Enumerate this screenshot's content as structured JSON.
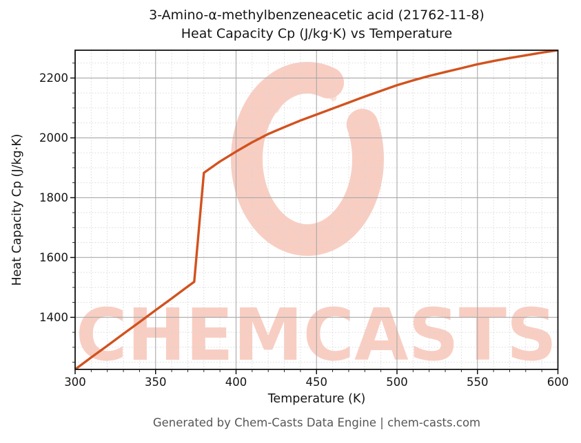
{
  "title": {
    "line1": "3-Amino-α-methylbenzeneacetic acid (21762-11-8)",
    "line2": "Heat Capacity Cp (J/kg·K) vs Temperature"
  },
  "footer": {
    "text": "Generated by Chem-Casts Data Engine | chem-casts.com"
  },
  "watermark": {
    "text": "CHEMCASTS",
    "logo": "c-swoosh-logo",
    "color": "#e65028",
    "opacity": 0.28
  },
  "chart_data": {
    "type": "line",
    "title": "3-Amino-α-methylbenzeneacetic acid (21762-11-8) — Heat Capacity Cp (J/kg·K) vs Temperature",
    "xlabel": "Temperature (K)",
    "ylabel": "Heat Capacity Cp (J/kg·K)",
    "xlim": [
      300,
      600
    ],
    "ylim": [
      1226,
      2293
    ],
    "xticks_major": [
      300,
      350,
      400,
      450,
      500,
      550,
      600
    ],
    "xtick_minor_step": 10,
    "yticks_major": [
      1400,
      1600,
      1800,
      2000,
      2200
    ],
    "ytick_minor_step": 50,
    "grid": true,
    "legend": false,
    "line_color": "#d2521e",
    "line_width": 3.4,
    "major_grid_color": "#a8a8a8",
    "minor_grid_color": "#d4d4d4",
    "spine_color": "#111111",
    "tick_label_color": "#151515",
    "series": [
      {
        "name": "Heat Capacity Cp",
        "points": [
          [
            300,
            1226
          ],
          [
            310,
            1266
          ],
          [
            320,
            1305
          ],
          [
            330,
            1345
          ],
          [
            340,
            1384
          ],
          [
            350,
            1424
          ],
          [
            360,
            1463
          ],
          [
            370,
            1503
          ],
          [
            374,
            1519
          ],
          [
            380,
            1883
          ],
          [
            390,
            1921
          ],
          [
            400,
            1954
          ],
          [
            410,
            1985
          ],
          [
            420,
            2013
          ],
          [
            430,
            2036
          ],
          [
            440,
            2058
          ],
          [
            450,
            2078
          ],
          [
            460,
            2098
          ],
          [
            470,
            2118
          ],
          [
            480,
            2138
          ],
          [
            490,
            2157
          ],
          [
            500,
            2176
          ],
          [
            510,
            2192
          ],
          [
            520,
            2207
          ],
          [
            530,
            2220
          ],
          [
            540,
            2233
          ],
          [
            550,
            2246
          ],
          [
            560,
            2257
          ],
          [
            570,
            2267
          ],
          [
            580,
            2276
          ],
          [
            590,
            2285
          ],
          [
            600,
            2293
          ]
        ]
      }
    ]
  }
}
